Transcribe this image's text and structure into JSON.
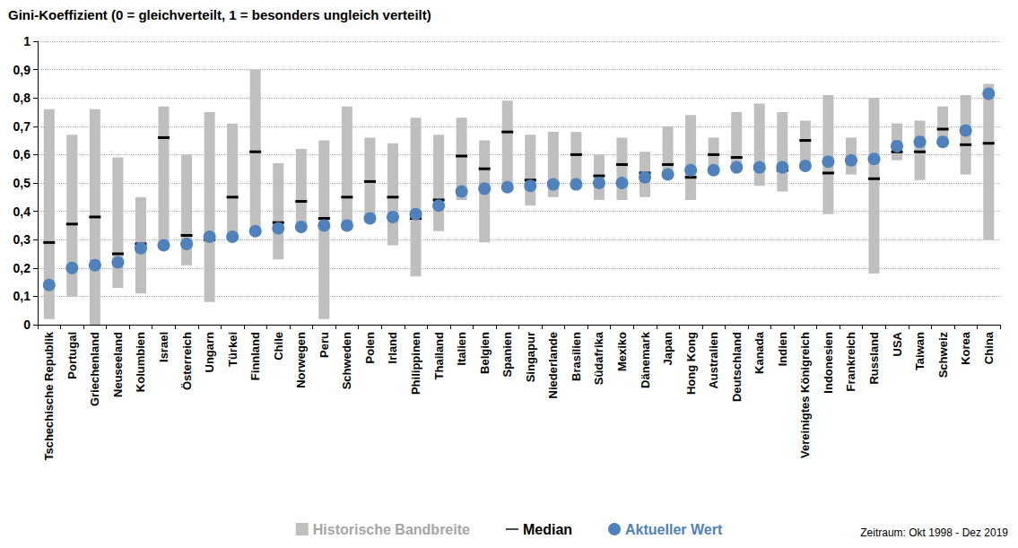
{
  "chart_data": {
    "type": "range",
    "title": "Gini-Koeffizient (0 = gleichverteilt, 1 = besonders ungleich verteilt)",
    "annotation": "Zeitraum: Okt 1998 - Dez 2019",
    "categories": [
      "Tschechische Republik",
      "Portugal",
      "Griechenland",
      "Neuseeland",
      "Kolumbien",
      "Israel",
      "Österreich",
      "Ungarn",
      "Türkei",
      "Finnland",
      "Chile",
      "Norwegen",
      "Peru",
      "Schweden",
      "Polen",
      "Irland",
      "Philippinen",
      "Thailand",
      "Italien",
      "Belgien",
      "Spanien",
      "Singapur",
      "Niederlande",
      "Brasilien",
      "Südafrika",
      "Mexiko",
      "Dänemark",
      "Japan",
      "Hong Kong",
      "Australien",
      "Deutschland",
      "Kanada",
      "Indien",
      "Vereinigtes Königreich",
      "Indonesien",
      "Frankreich",
      "Russland",
      "USA",
      "Taiwan",
      "Schweiz",
      "Korea",
      "China"
    ],
    "series": [
      {
        "name": "Historische Bandbreite",
        "type": "range",
        "color": "#bfbfbf",
        "low": [
          0.02,
          0.1,
          0.0,
          0.13,
          0.11,
          0.27,
          0.21,
          0.08,
          0.3,
          0.32,
          0.23,
          0.34,
          0.02,
          0.35,
          0.37,
          0.28,
          0.17,
          0.33,
          0.44,
          0.29,
          0.48,
          0.42,
          0.45,
          0.48,
          0.44,
          0.44,
          0.45,
          0.52,
          0.44,
          0.54,
          0.54,
          0.49,
          0.47,
          0.56,
          0.39,
          0.53,
          0.18,
          0.58,
          0.51,
          0.64,
          0.53,
          0.3
        ],
        "high": [
          0.76,
          0.67,
          0.76,
          0.59,
          0.45,
          0.77,
          0.6,
          0.75,
          0.71,
          0.9,
          0.57,
          0.62,
          0.65,
          0.77,
          0.66,
          0.64,
          0.73,
          0.67,
          0.73,
          0.65,
          0.79,
          0.67,
          0.68,
          0.68,
          0.6,
          0.66,
          0.61,
          0.7,
          0.74,
          0.66,
          0.75,
          0.78,
          0.75,
          0.72,
          0.81,
          0.66,
          0.8,
          0.71,
          0.72,
          0.77,
          0.81,
          0.85
        ]
      },
      {
        "name": "Median",
        "type": "scatter",
        "marker": "dash",
        "color": "#000000",
        "values": [
          0.29,
          0.355,
          0.38,
          0.25,
          0.285,
          0.66,
          0.315,
          0.3,
          0.45,
          0.61,
          0.36,
          0.435,
          0.375,
          0.45,
          0.505,
          0.45,
          0.375,
          0.44,
          0.595,
          0.55,
          0.68,
          0.51,
          0.5,
          0.6,
          0.525,
          0.565,
          0.535,
          0.565,
          0.52,
          0.6,
          0.59,
          0.55,
          0.545,
          0.65,
          0.535,
          0.58,
          0.515,
          0.61,
          0.61,
          0.69,
          0.635,
          0.64
        ]
      },
      {
        "name": "Aktueller Wert",
        "type": "scatter",
        "marker": "circle",
        "color": "#4f81bd",
        "values": [
          0.14,
          0.2,
          0.21,
          0.22,
          0.27,
          0.28,
          0.285,
          0.31,
          0.31,
          0.33,
          0.34,
          0.345,
          0.35,
          0.35,
          0.375,
          0.38,
          0.39,
          0.42,
          0.47,
          0.48,
          0.485,
          0.49,
          0.495,
          0.495,
          0.5,
          0.5,
          0.52,
          0.53,
          0.545,
          0.545,
          0.555,
          0.555,
          0.555,
          0.56,
          0.575,
          0.58,
          0.585,
          0.63,
          0.645,
          0.645,
          0.685,
          0.815
        ]
      }
    ],
    "ylim": [
      0,
      1
    ],
    "yticks": [
      0,
      {
        "value": 0.1,
        "label": "0,1"
      },
      {
        "value": 0.2,
        "label": "0,2"
      },
      {
        "value": 0.3,
        "label": "0,3"
      },
      {
        "value": 0.4,
        "label": "0,4"
      },
      {
        "value": 0.5,
        "label": "0,5"
      },
      {
        "value": 0.6,
        "label": "0,6"
      },
      {
        "value": 0.7,
        "label": "0,7"
      },
      {
        "value": 0.8,
        "label": "0,8"
      },
      {
        "value": 0.9,
        "label": "0,9"
      },
      1
    ],
    "grid": true,
    "legend": "bottom"
  }
}
